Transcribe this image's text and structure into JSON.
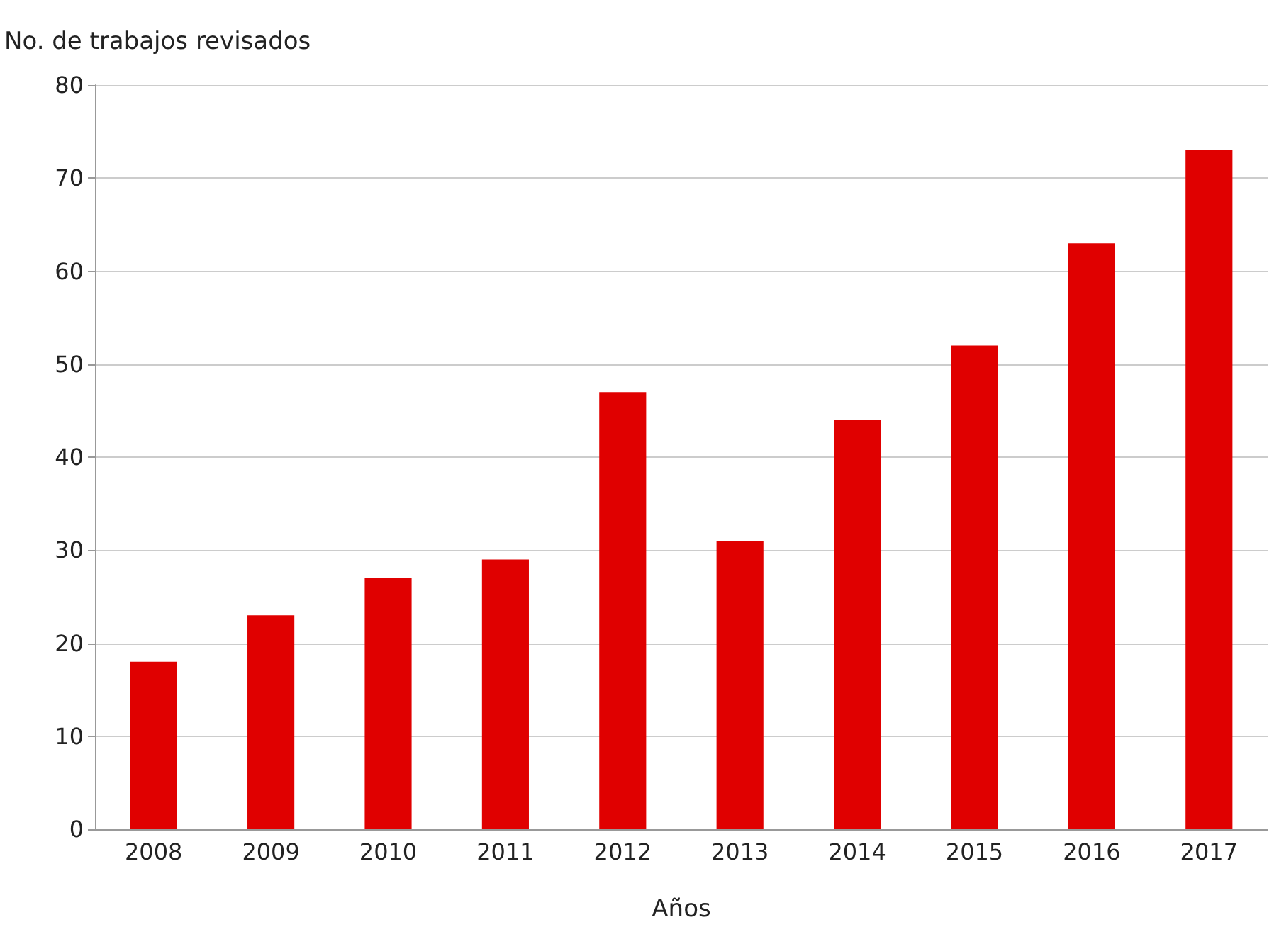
{
  "chart_data": {
    "type": "bar",
    "ylabel": "No. de trabajos revisados",
    "xlabel": "Años",
    "categories": [
      "2008",
      "2009",
      "2010",
      "2011",
      "2012",
      "2013",
      "2014",
      "2015",
      "2016",
      "2017"
    ],
    "values": [
      18,
      23,
      27,
      29,
      47,
      31,
      44,
      52,
      63,
      73
    ],
    "color": "#e00000",
    "ylim": [
      0,
      80
    ],
    "yticks": [
      0,
      10,
      20,
      30,
      40,
      50,
      60,
      70,
      80
    ],
    "grid": "y"
  }
}
